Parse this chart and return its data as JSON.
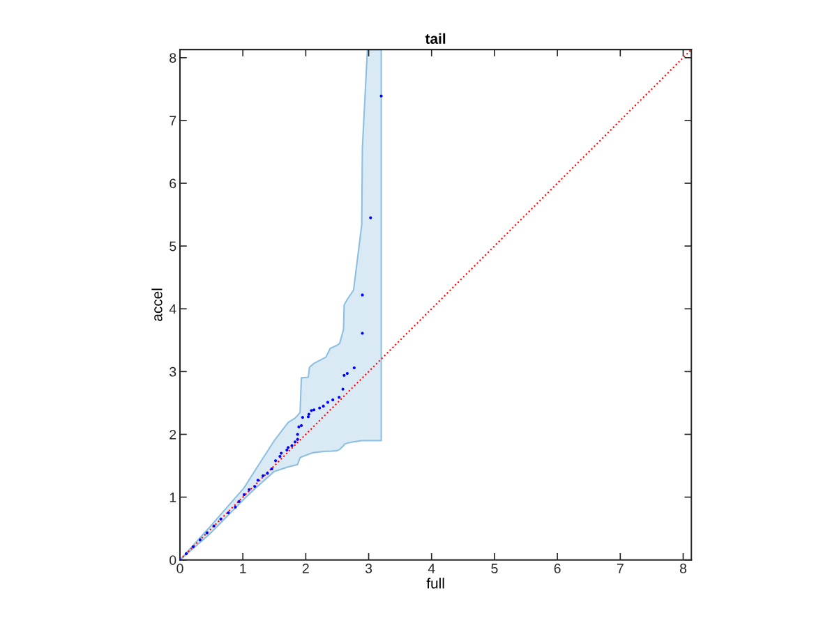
{
  "chart_data": {
    "type": "scatter",
    "title": "tail",
    "xlabel": "full",
    "ylabel": "accel",
    "xlim": [
      0,
      8.13
    ],
    "ylim": [
      0,
      8.13
    ],
    "xticks": [
      0,
      1,
      2,
      3,
      4,
      5,
      6,
      7,
      8
    ],
    "yticks": [
      0,
      1,
      2,
      3,
      4,
      5,
      6,
      7,
      8
    ],
    "grid": false,
    "series": [
      {
        "type": "line",
        "color": "#8cbfe0",
        "x": [
          0,
          0.47,
          1.02,
          1.21,
          1.5,
          1.72,
          1.83,
          1.87,
          1.91,
          1.93,
          2.04,
          2.06,
          2.13,
          2.32,
          2.39,
          2.5,
          2.54,
          2.6,
          2.61,
          2.66,
          2.76,
          2.89,
          2.9,
          2.98,
          3.2
        ],
        "values": [
          null,
          null,
          null,
          null,
          null,
          null,
          null,
          null,
          null,
          null,
          null,
          null,
          null,
          null,
          null,
          null,
          null,
          null,
          null,
          null,
          null,
          null,
          null,
          null,
          null
        ],
        "upper": [
          0,
          0.52,
          1.15,
          1.45,
          1.9,
          2.19,
          2.26,
          2.3,
          2.35,
          2.9,
          2.91,
          3.07,
          3.13,
          3.23,
          3.37,
          3.42,
          3.45,
          3.67,
          4.06,
          4.15,
          4.3,
          5.34,
          6.56,
          8.13,
          8.13
        ],
        "lower": [
          0,
          0.41,
          0.97,
          1.15,
          1.41,
          1.48,
          1.51,
          1.52,
          1.63,
          1.64,
          1.68,
          1.69,
          1.71,
          1.73,
          1.73,
          1.74,
          1.76,
          1.82,
          1.84,
          1.86,
          1.88,
          1.9,
          1.9,
          1.9,
          1.9
        ]
      },
      {
        "type": "line",
        "color": "#ff0000",
        "line_style": "dotted",
        "x": [
          0,
          8.13
        ],
        "values": [
          0,
          8.13
        ]
      },
      {
        "color": "#0000ff",
        "marker": "circle",
        "x": [
          0,
          0.1,
          0.21,
          0.32,
          0.43,
          0.54,
          0.65,
          0.77,
          0.88,
          0.94,
          1.02,
          1.1,
          1.19,
          1.24,
          1.32,
          1.39,
          1.46,
          1.52,
          1.59,
          1.61,
          1.7,
          1.72,
          1.78,
          1.83,
          1.87,
          1.87,
          1.89,
          1.93,
          1.95,
          2.04,
          2.05,
          2.09,
          2.13,
          2.22,
          2.28,
          2.35,
          2.43,
          2.53,
          2.59,
          2.61,
          2.66,
          2.77,
          2.9,
          2.9,
          3.03,
          3.2
        ],
        "values": [
          0,
          0.1,
          0.21,
          0.32,
          0.43,
          0.54,
          0.65,
          0.75,
          0.84,
          0.93,
          1.04,
          1.12,
          1.17,
          1.27,
          1.34,
          1.38,
          1.45,
          1.58,
          1.65,
          1.7,
          1.75,
          1.79,
          1.82,
          1.88,
          1.92,
          2.0,
          2.12,
          2.14,
          2.27,
          2.28,
          2.32,
          2.38,
          2.39,
          2.42,
          2.45,
          2.51,
          2.55,
          2.59,
          2.72,
          2.94,
          2.97,
          3.06,
          3.61,
          4.22,
          5.45,
          7.39
        ]
      }
    ]
  }
}
